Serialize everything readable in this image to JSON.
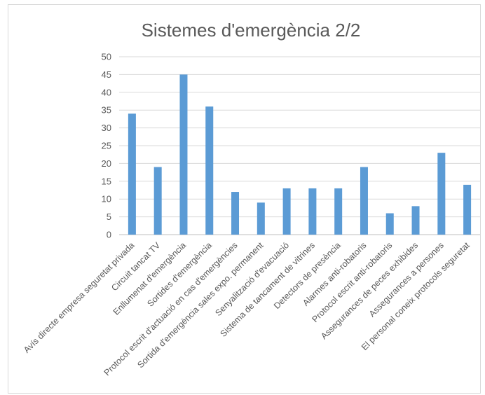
{
  "chart_data": {
    "type": "bar",
    "title": "Sistemes d'emergència 2/2",
    "xlabel": "",
    "ylabel": "",
    "ylim": [
      0,
      50
    ],
    "yticks": [
      0,
      5,
      10,
      15,
      20,
      25,
      30,
      35,
      40,
      45,
      50
    ],
    "grid": true,
    "legend": "none",
    "bar_color": "#5b9bd5",
    "categories": [
      "Avís directe empresa seguretat privada",
      "Circuit tancat TV",
      "Enllumenat d'emergència",
      "Sortides d'emergència",
      "Protocol escrit d'actuació en cas d'emergències",
      "Sortida d'emergència sales expo. permanent",
      "Senyalització d'evacuació",
      "Sistema de tancament de vitrines",
      "Detectors de presència",
      "Alarmes anti-robatoris",
      "Protocol escrit anti-robatoris",
      "Assegurances de peces exhibides",
      "Assegurances a persones",
      "El personal coneix protocols seguretat"
    ],
    "values": [
      34,
      19,
      45,
      36,
      12,
      9,
      13,
      13,
      13,
      19,
      6,
      8,
      23,
      14
    ]
  }
}
